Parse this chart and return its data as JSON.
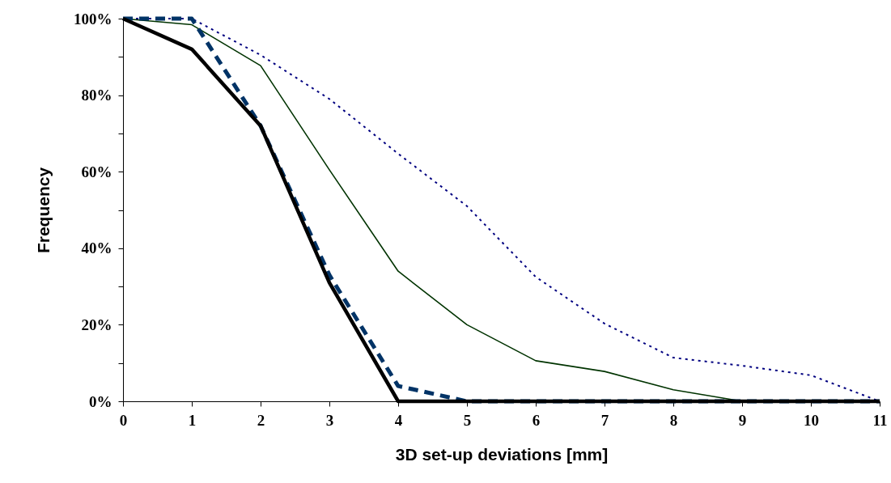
{
  "chart_data": {
    "type": "line",
    "xlabel": "3D set-up deviations [mm]",
    "ylabel": "Frequency",
    "x": [
      0,
      1,
      2,
      3,
      4,
      5,
      6,
      7,
      8,
      9,
      10,
      11
    ],
    "series": [
      {
        "color": "#000080",
        "line_style": "dotted",
        "values": [
          100,
          100,
          90.5,
          79,
          64.7,
          51,
          32.5,
          20.3,
          11.4,
          9.3,
          6.8,
          0
        ]
      },
      {
        "color": "#003300",
        "line_style": "solid",
        "values": [
          100,
          98.4,
          87.7,
          60.5,
          34,
          20,
          10.6,
          7.8,
          3,
          0,
          0,
          0
        ]
      },
      {
        "color": "#003366",
        "line_style": "dashed",
        "values": [
          100,
          100,
          72,
          33,
          4,
          0,
          0,
          0,
          0,
          0,
          0,
          0
        ]
      },
      {
        "color": "#000000",
        "line_style": "solid",
        "values": [
          100,
          92,
          72,
          31,
          0,
          0,
          0,
          0,
          0,
          0,
          0,
          0
        ]
      }
    ],
    "xlim": [
      0,
      11
    ],
    "xticks": [
      0,
      1,
      2,
      3,
      4,
      5,
      6,
      7,
      8,
      9,
      10,
      11
    ],
    "ylim": [
      0,
      100
    ],
    "yticks": [
      {
        "value": 0,
        "label": "0%"
      },
      {
        "value": 10,
        "label": null
      },
      {
        "value": 20,
        "label": "20%"
      },
      {
        "value": 30,
        "label": null
      },
      {
        "value": 40,
        "label": "40%"
      },
      {
        "value": 50,
        "label": null
      },
      {
        "value": 60,
        "label": "60%"
      },
      {
        "value": 70,
        "label": null
      },
      {
        "value": 80,
        "label": "80%"
      },
      {
        "value": 90,
        "label": null
      },
      {
        "value": 100,
        "label": "100%"
      }
    ],
    "grid": false,
    "marker": "none"
  }
}
